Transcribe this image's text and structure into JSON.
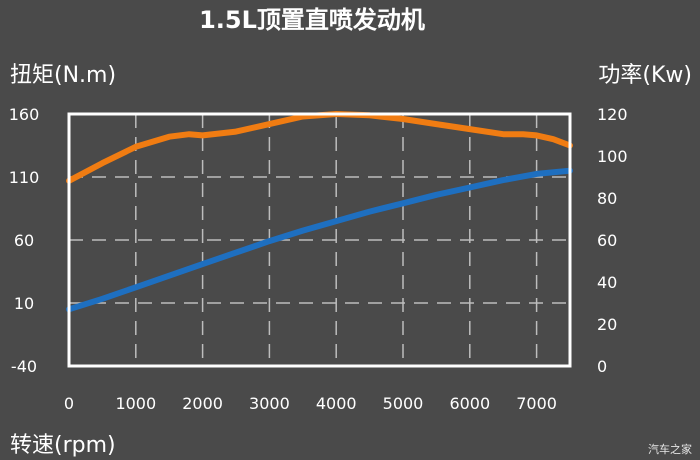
{
  "title": "1.5L顶置直喷发动机",
  "watermark": "汽车之家",
  "chart_data": {
    "type": "line",
    "title": "1.5L顶置直喷发动机",
    "xlabel": "转速(rpm)",
    "ylabel_left": "扭矩(N.m)",
    "ylabel_right": "功率(Kw)",
    "xlim": [
      0,
      7500
    ],
    "ylim_left": [
      -40,
      160
    ],
    "ylim_right": [
      0,
      120
    ],
    "x_ticks": [
      0,
      1000,
      2000,
      3000,
      4000,
      5000,
      6000,
      7000
    ],
    "y_left_ticks": [
      160,
      110,
      60,
      10,
      -40
    ],
    "y_right_ticks": [
      120,
      100,
      80,
      60,
      40,
      20,
      0
    ],
    "grid": true,
    "series": [
      {
        "axis": "left",
        "color": "#f07c12",
        "x": [
          0,
          500,
          1000,
          1500,
          1800,
          2000,
          2500,
          3000,
          3500,
          4000,
          4500,
          5000,
          5500,
          6000,
          6500,
          6800,
          7000,
          7250,
          7500
        ],
        "y": [
          107,
          121,
          134,
          142,
          144,
          143,
          146,
          152,
          158,
          160,
          159,
          156,
          152,
          148,
          144,
          144,
          143,
          140,
          135
        ]
      },
      {
        "axis": "right",
        "color": "#1e6fc0",
        "x": [
          0,
          500,
          1000,
          1500,
          2000,
          2500,
          3000,
          3500,
          4000,
          4500,
          5000,
          5500,
          6000,
          6500,
          7000,
          7500
        ],
        "y": [
          27,
          32,
          37.5,
          43,
          48.5,
          54,
          59.5,
          64.5,
          69,
          73.5,
          77.5,
          81.5,
          85,
          88.5,
          91.5,
          93
        ]
      }
    ]
  }
}
